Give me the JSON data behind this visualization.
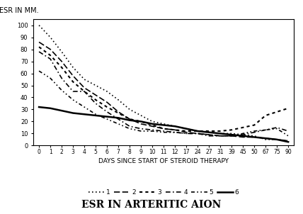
{
  "x_ticks": [
    0,
    1,
    2,
    3,
    4,
    5,
    6,
    7,
    8,
    9,
    10,
    11,
    12,
    17,
    24,
    27,
    31,
    39,
    45,
    50,
    67,
    75,
    90
  ],
  "title": "ESR IN ARTERITIC AION",
  "ylabel": "ESR IN MM.",
  "xlabel": "DAYS SINCE START OF STEROID THERAPY",
  "ylim": [
    0,
    105
  ],
  "xlim": [
    -1,
    93
  ],
  "background_color": "#ffffff",
  "series": [
    {
      "label": "1",
      "x": [
        0,
        1,
        2,
        3,
        4,
        5,
        6,
        7,
        8,
        9,
        10,
        11,
        12,
        17,
        24,
        27,
        31,
        39,
        45,
        50,
        67,
        75,
        90
      ],
      "y": [
        100,
        90,
        78,
        65,
        55,
        50,
        45,
        38,
        30,
        25,
        20,
        18,
        16,
        14,
        12,
        11,
        10,
        10,
        9,
        8,
        5,
        5,
        4
      ]
    },
    {
      "label": "2",
      "x": [
        0,
        1,
        2,
        3,
        4,
        5,
        6,
        7,
        8,
        9,
        10,
        11,
        12,
        17,
        24,
        27,
        31,
        39,
        45,
        50,
        67,
        75,
        90
      ],
      "y": [
        86,
        80,
        70,
        58,
        48,
        42,
        36,
        28,
        22,
        18,
        16,
        14,
        13,
        11,
        10,
        9,
        8,
        8,
        7,
        7,
        6,
        5,
        4
      ]
    },
    {
      "label": "3",
      "x": [
        0,
        1,
        2,
        3,
        4,
        5,
        6,
        7,
        8,
        9,
        10,
        11,
        12,
        17,
        24,
        27,
        31,
        39,
        45,
        50,
        67,
        75,
        90
      ],
      "y": [
        82,
        75,
        65,
        53,
        45,
        38,
        32,
        27,
        22,
        20,
        17,
        14,
        13,
        12,
        12,
        12,
        12,
        13,
        15,
        17,
        25,
        28,
        31
      ]
    },
    {
      "label": "4",
      "x": [
        0,
        1,
        2,
        3,
        4,
        5,
        6,
        7,
        8,
        9,
        10,
        11,
        12,
        17,
        24,
        27,
        31,
        39,
        45,
        50,
        67,
        75,
        90
      ],
      "y": [
        78,
        72,
        56,
        45,
        45,
        35,
        28,
        22,
        16,
        14,
        13,
        12,
        11,
        10,
        10,
        8,
        8,
        8,
        9,
        11,
        13,
        15,
        12
      ]
    },
    {
      "label": "5",
      "x": [
        0,
        1,
        2,
        3,
        4,
        5,
        6,
        7,
        8,
        9,
        10,
        11,
        12,
        17,
        24,
        27,
        31,
        39,
        45,
        50,
        67,
        75,
        90
      ],
      "y": [
        62,
        56,
        46,
        38,
        32,
        26,
        22,
        18,
        14,
        12,
        12,
        11,
        11,
        10,
        10,
        9,
        8,
        8,
        10,
        12,
        13,
        14,
        8
      ]
    },
    {
      "label": "6",
      "x": [
        0,
        1,
        2,
        3,
        4,
        5,
        6,
        7,
        8,
        9,
        10,
        11,
        12,
        17,
        24,
        27,
        31,
        39,
        45,
        50,
        67,
        75,
        90
      ],
      "y": [
        32,
        31,
        29,
        27,
        26,
        25,
        24,
        23,
        21,
        20,
        18,
        17,
        16,
        14,
        12,
        11,
        10,
        9,
        8,
        7,
        6,
        5,
        3
      ]
    }
  ],
  "line_styles": [
    {
      "lw": 1.2,
      "dash": [
        1,
        2
      ]
    },
    {
      "lw": 1.2,
      "dash": [
        5,
        2
      ]
    },
    {
      "lw": 1.5,
      "dash": [
        2,
        2
      ]
    },
    {
      "lw": 1.2,
      "dash": [
        4,
        2,
        1,
        2
      ]
    },
    {
      "lw": 1.2,
      "dash": [
        3,
        2,
        1,
        2,
        1,
        2
      ]
    },
    {
      "lw": 1.8,
      "dash": []
    }
  ]
}
